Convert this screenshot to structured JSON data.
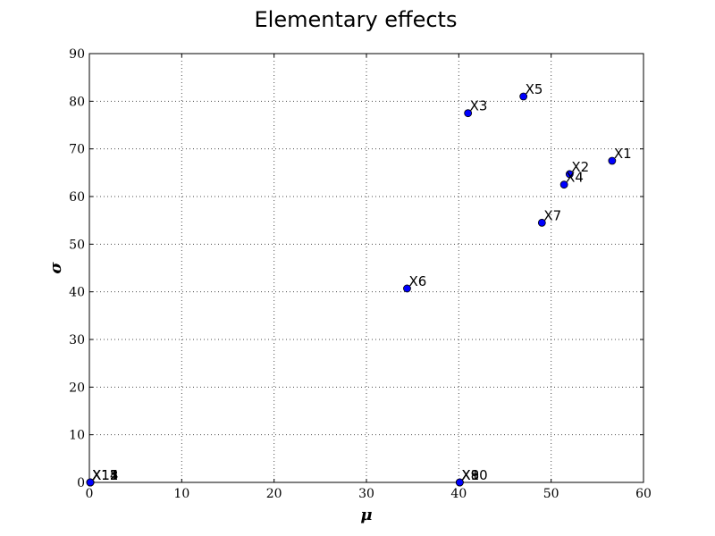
{
  "chart_data": {
    "type": "scatter",
    "title": "Elementary effects",
    "xlabel": "μ",
    "ylabel": "σ",
    "xlim": [
      0,
      60
    ],
    "ylim": [
      0,
      90
    ],
    "xticks": [
      0,
      10,
      20,
      30,
      40,
      50,
      60
    ],
    "yticks": [
      0,
      10,
      20,
      30,
      40,
      50,
      60,
      70,
      80,
      90
    ],
    "grid": true,
    "marker_color": "#0000ff",
    "points": [
      {
        "label": "X1",
        "x": 56.6,
        "y": 67.5
      },
      {
        "label": "X2",
        "x": 52.0,
        "y": 64.7
      },
      {
        "label": "X3",
        "x": 41.0,
        "y": 77.5
      },
      {
        "label": "X4",
        "x": 51.4,
        "y": 62.5
      },
      {
        "label": "X5",
        "x": 47.0,
        "y": 81.0
      },
      {
        "label": "X6",
        "x": 34.4,
        "y": 40.7
      },
      {
        "label": "X7",
        "x": 49.0,
        "y": 54.5
      },
      {
        "label": "X8",
        "x": 40.1,
        "y": 0.0
      },
      {
        "label": "X9",
        "x": 40.1,
        "y": 0.0
      },
      {
        "label": "X10",
        "x": 40.1,
        "y": 0.0
      },
      {
        "label": "X11",
        "x": 0.1,
        "y": 0.0
      },
      {
        "label": "X12",
        "x": 0.1,
        "y": 0.0
      },
      {
        "label": "X13",
        "x": 0.1,
        "y": 0.0
      },
      {
        "label": "X14",
        "x": 0.1,
        "y": 0.0
      },
      {
        "label": "X15",
        "x": 0.1,
        "y": 0.0
      }
    ]
  }
}
